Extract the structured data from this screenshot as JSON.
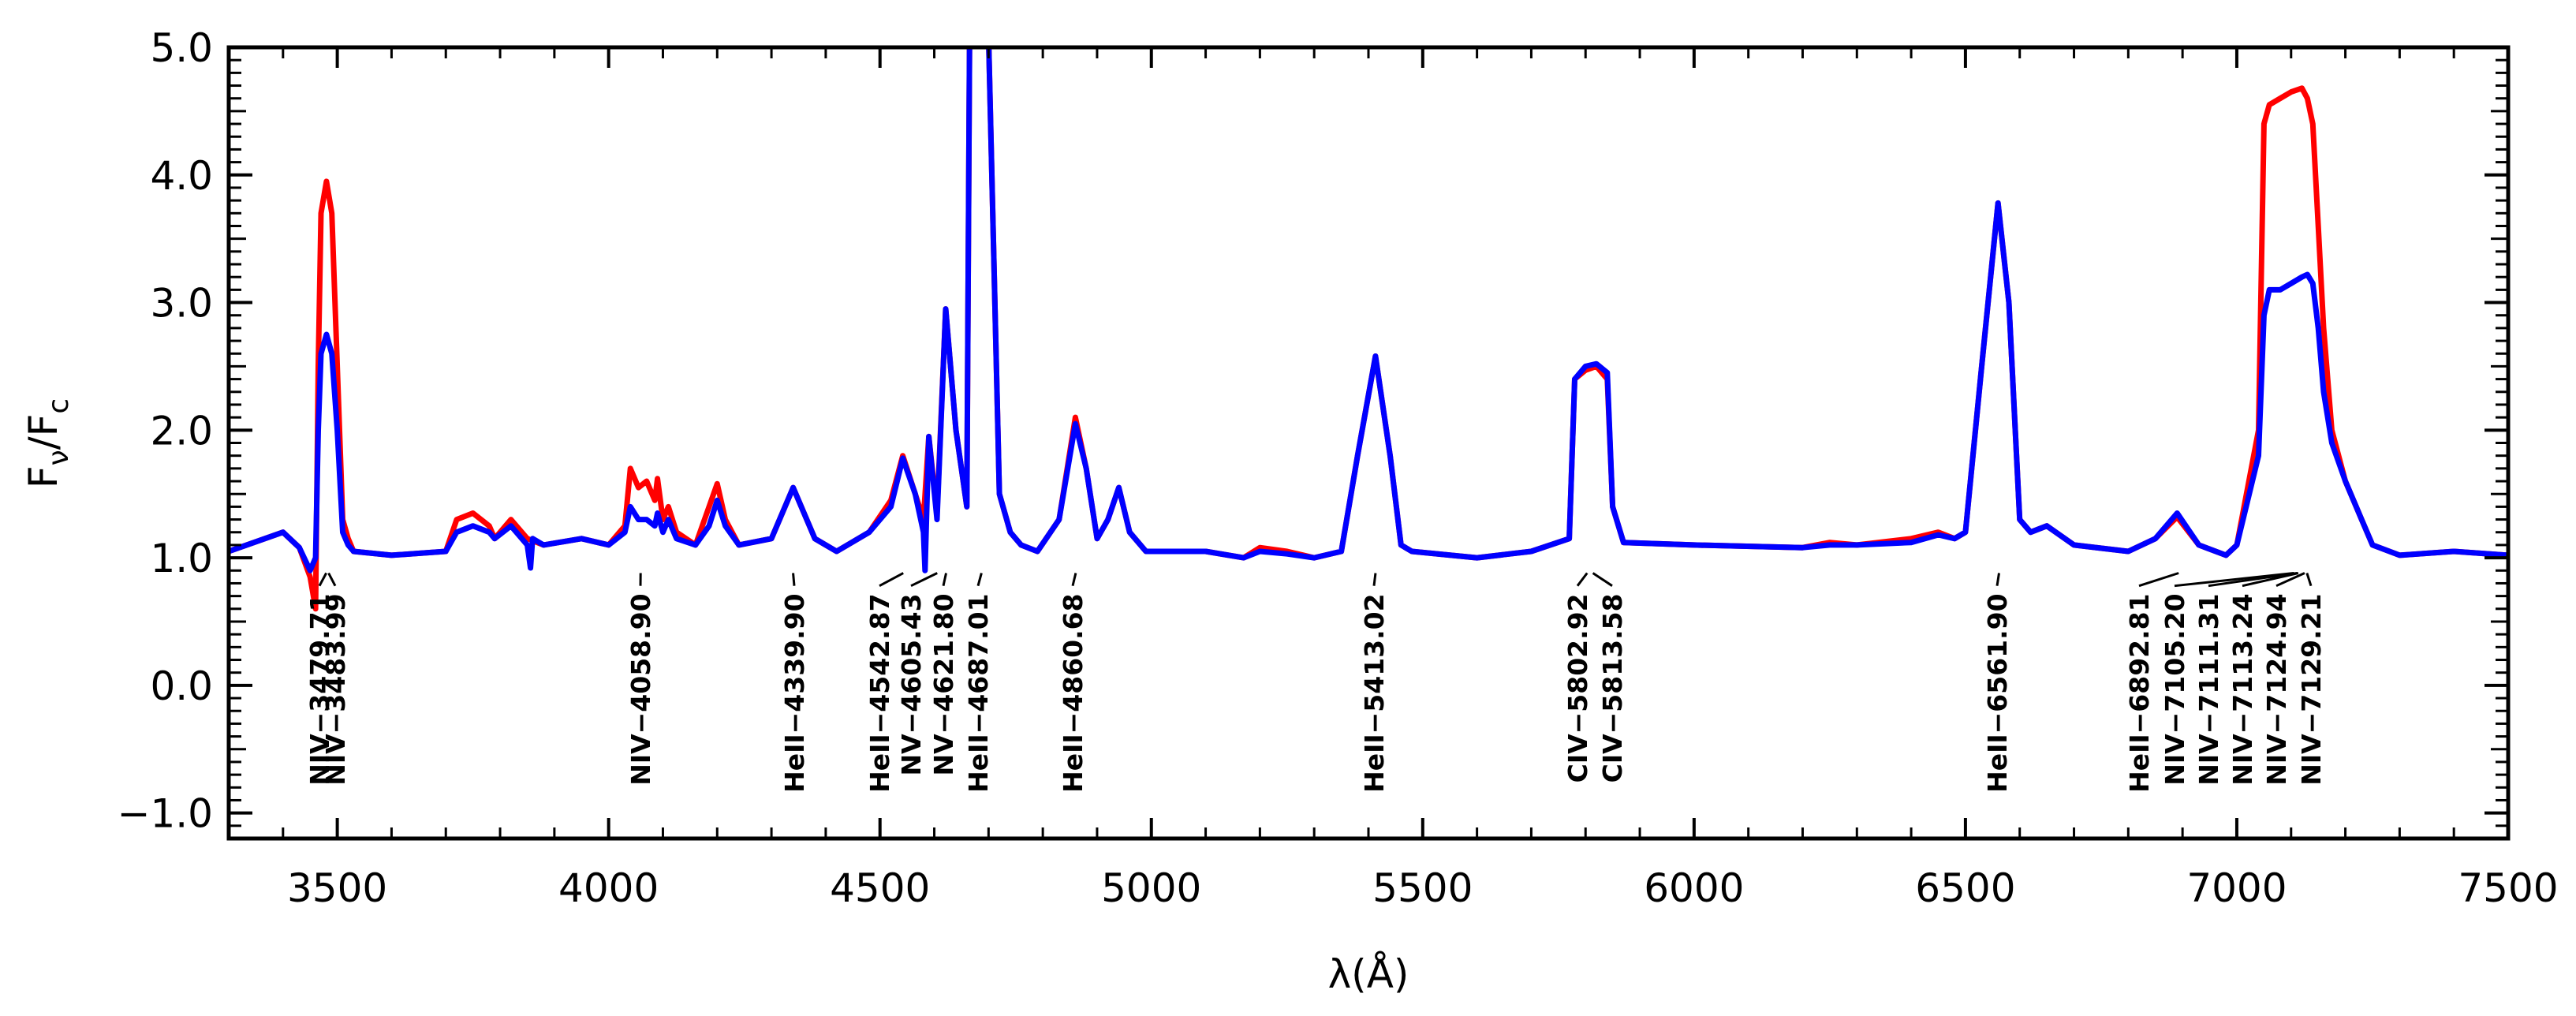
{
  "chart_data": {
    "type": "line",
    "title": "",
    "xlabel": "λ(Å)",
    "ylabel": {
      "main": "F",
      "sub1": "ν",
      "sep": "/F",
      "sub2": "c"
    },
    "xlim": [
      3300,
      7500
    ],
    "ylim": [
      -1.2,
      5.0
    ],
    "xticks": [
      3500,
      4000,
      4500,
      5000,
      5500,
      6000,
      6500,
      7000,
      7500
    ],
    "yticks": [
      -1.0,
      0.0,
      1.0,
      2.0,
      3.0,
      4.0,
      5.0
    ],
    "ytick_labels": [
      "−1.0",
      "0.0",
      "1.0",
      "2.0",
      "3.0",
      "4.0",
      "5.0"
    ],
    "xtick_labels": [
      "3500",
      "4000",
      "4500",
      "5000",
      "5500",
      "6000",
      "6500",
      "7000",
      "7500"
    ],
    "grid": false,
    "legend": "none",
    "colors": {
      "series_red": "#ff0000",
      "series_blue": "#0000ff",
      "axis": "#000000",
      "annotation": "#000000"
    },
    "series": [
      {
        "color": "#ff0000",
        "x": [
          3300,
          3400,
          3430,
          3450,
          3460,
          3465,
          3470,
          3480,
          3490,
          3500,
          3510,
          3520,
          3530,
          3600,
          3700,
          3720,
          3750,
          3780,
          3790,
          3820,
          3850,
          3880,
          3950,
          4000,
          4030,
          4040,
          4055,
          4070,
          4085,
          4090,
          4100,
          4110,
          4125,
          4160,
          4185,
          4200,
          4215,
          4240,
          4300,
          4340,
          4380,
          4420,
          4480,
          4520,
          4542,
          4565,
          4580,
          4590,
          4605,
          4621,
          4640,
          4660,
          4665,
          4700,
          4720,
          4740,
          4760,
          4790,
          4830,
          4860,
          4880,
          4900,
          4920,
          4940,
          4960,
          4990,
          5100,
          5170,
          5200,
          5250,
          5300,
          5350,
          5380,
          5413,
          5440,
          5460,
          5480,
          5600,
          5700,
          5770,
          5780,
          5800,
          5820,
          5840,
          5850,
          5870,
          6000,
          6200,
          6250,
          6300,
          6400,
          6450,
          6480,
          6500,
          6530,
          6560,
          6580,
          6600,
          6620,
          6650,
          6700,
          6800,
          6850,
          6890,
          6930,
          6980,
          7000,
          7040,
          7050,
          7060,
          7080,
          7100,
          7120,
          7130,
          7140,
          7150,
          7160,
          7175,
          7200,
          7230,
          7250,
          7300,
          7400,
          7500
        ],
        "y": [
          1.05,
          1.2,
          1.08,
          0.85,
          0.6,
          2.5,
          3.7,
          3.95,
          3.7,
          2.5,
          1.3,
          1.15,
          1.05,
          1.02,
          1.05,
          1.3,
          1.35,
          1.25,
          1.15,
          1.3,
          1.15,
          1.1,
          1.15,
          1.1,
          1.25,
          1.7,
          1.55,
          1.6,
          1.45,
          1.62,
          1.3,
          1.4,
          1.2,
          1.1,
          1.4,
          1.58,
          1.3,
          1.1,
          1.15,
          1.55,
          1.15,
          1.05,
          1.2,
          1.45,
          1.8,
          1.5,
          1.3,
          1.95,
          1.35,
          2.95,
          2.0,
          1.4,
          5.1,
          5.1,
          1.5,
          1.2,
          1.1,
          1.05,
          1.3,
          2.1,
          1.7,
          1.15,
          1.3,
          1.55,
          1.2,
          1.05,
          1.05,
          1.0,
          1.08,
          1.05,
          1.0,
          1.05,
          1.8,
          2.58,
          1.8,
          1.1,
          1.05,
          1.0,
          1.05,
          1.15,
          2.4,
          2.47,
          2.5,
          2.4,
          1.4,
          1.12,
          1.1,
          1.08,
          1.12,
          1.1,
          1.15,
          1.2,
          1.15,
          1.2,
          2.5,
          3.78,
          3.0,
          1.3,
          1.2,
          1.25,
          1.1,
          1.05,
          1.15,
          1.32,
          1.1,
          1.02,
          1.1,
          2.0,
          4.4,
          4.55,
          4.6,
          4.65,
          4.68,
          4.6,
          4.4,
          3.6,
          2.8,
          2.0,
          1.6,
          1.3,
          1.1,
          1.02,
          1.05,
          1.02
        ]
      },
      {
        "color": "#0000ff",
        "x": [
          3300,
          3400,
          3430,
          3450,
          3460,
          3465,
          3470,
          3480,
          3490,
          3500,
          3510,
          3520,
          3530,
          3600,
          3700,
          3720,
          3750,
          3780,
          3790,
          3820,
          3850,
          3856,
          3860,
          3880,
          3950,
          4000,
          4030,
          4040,
          4055,
          4070,
          4085,
          4090,
          4100,
          4110,
          4125,
          4160,
          4185,
          4200,
          4215,
          4240,
          4300,
          4340,
          4380,
          4420,
          4480,
          4520,
          4542,
          4565,
          4580,
          4583,
          4590,
          4605,
          4621,
          4640,
          4660,
          4665,
          4700,
          4720,
          4740,
          4760,
          4790,
          4830,
          4860,
          4880,
          4900,
          4920,
          4940,
          4960,
          4990,
          5100,
          5170,
          5200,
          5250,
          5300,
          5350,
          5380,
          5413,
          5440,
          5460,
          5480,
          5600,
          5700,
          5770,
          5780,
          5800,
          5820,
          5840,
          5850,
          5870,
          6000,
          6200,
          6250,
          6300,
          6400,
          6450,
          6480,
          6500,
          6530,
          6560,
          6580,
          6600,
          6620,
          6650,
          6700,
          6800,
          6850,
          6890,
          6930,
          6980,
          7000,
          7040,
          7050,
          7060,
          7080,
          7100,
          7120,
          7130,
          7140,
          7150,
          7160,
          7175,
          7200,
          7230,
          7250,
          7300,
          7400,
          7500
        ],
        "y": [
          1.05,
          1.2,
          1.08,
          0.9,
          1.0,
          2.0,
          2.6,
          2.75,
          2.6,
          2.0,
          1.2,
          1.1,
          1.05,
          1.02,
          1.05,
          1.2,
          1.25,
          1.2,
          1.15,
          1.25,
          1.1,
          0.92,
          1.15,
          1.1,
          1.15,
          1.1,
          1.2,
          1.4,
          1.3,
          1.3,
          1.25,
          1.35,
          1.2,
          1.3,
          1.15,
          1.1,
          1.25,
          1.45,
          1.25,
          1.1,
          1.15,
          1.55,
          1.15,
          1.05,
          1.2,
          1.4,
          1.78,
          1.5,
          1.2,
          0.9,
          1.95,
          1.3,
          2.95,
          2.0,
          1.4,
          5.1,
          5.1,
          1.5,
          1.2,
          1.1,
          1.05,
          1.3,
          2.05,
          1.7,
          1.15,
          1.3,
          1.55,
          1.2,
          1.05,
          1.05,
          1.0,
          1.05,
          1.03,
          1.0,
          1.05,
          1.8,
          2.58,
          1.8,
          1.1,
          1.05,
          1.0,
          1.05,
          1.15,
          2.4,
          2.5,
          2.52,
          2.45,
          1.4,
          1.12,
          1.1,
          1.08,
          1.1,
          1.1,
          1.12,
          1.18,
          1.15,
          1.2,
          2.5,
          3.78,
          3.0,
          1.3,
          1.2,
          1.25,
          1.1,
          1.05,
          1.15,
          1.35,
          1.1,
          1.02,
          1.1,
          1.8,
          2.9,
          3.1,
          3.1,
          3.15,
          3.2,
          3.22,
          3.15,
          2.8,
          2.3,
          1.9,
          1.6,
          1.3,
          1.1,
          1.02,
          1.05,
          1.02
        ]
      }
    ],
    "annotations": [
      {
        "label": "NIV−3479.71",
        "wavelength": 3479.71
      },
      {
        "label": "NIV−3483.99",
        "wavelength": 3483.99
      },
      {
        "label": "NIV−4058.90",
        "wavelength": 4058.9
      },
      {
        "label": "HeII−4339.90",
        "wavelength": 4339.9
      },
      {
        "label": "HeII−4542.87",
        "wavelength": 4542.87
      },
      {
        "label": "NV−4605.43",
        "wavelength": 4605.43
      },
      {
        "label": "NV−4621.80",
        "wavelength": 4621.8
      },
      {
        "label": "HeII−4687.01",
        "wavelength": 4687.01
      },
      {
        "label": "HeII−4860.68",
        "wavelength": 4860.68
      },
      {
        "label": "HeII−5413.02",
        "wavelength": 5413.02
      },
      {
        "label": "CIV−5802.92",
        "wavelength": 5802.92
      },
      {
        "label": "CIV−5813.58",
        "wavelength": 5813.58
      },
      {
        "label": "HeII−6561.90",
        "wavelength": 6561.9
      },
      {
        "label": "HeII−6892.81",
        "wavelength": 6892.81
      },
      {
        "label": "NIV−7105.20",
        "wavelength": 7105.2
      },
      {
        "label": "NIV−7111.31",
        "wavelength": 7111.31
      },
      {
        "label": "NIV−7113.24",
        "wavelength": 7113.24
      },
      {
        "label": "NIV−7124.94",
        "wavelength": 7124.94
      },
      {
        "label": "NIV−7129.21",
        "wavelength": 7129.21
      }
    ]
  }
}
